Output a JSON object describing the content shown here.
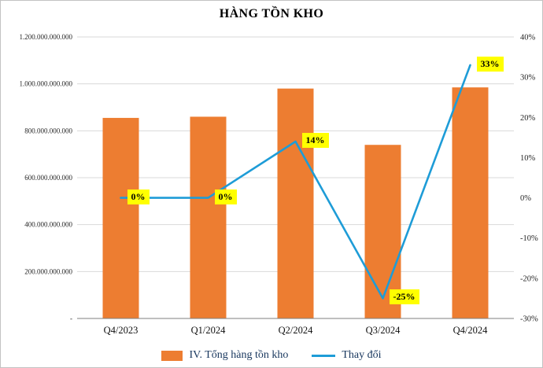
{
  "title": "HÀNG TỒN KHO",
  "legend": {
    "bar_label": "IV. Tổng hàng tồn kho",
    "line_label": "Thay đổi"
  },
  "colors": {
    "bar": "#ED7D31",
    "line": "#1E9CD7",
    "label_bg": "#FFFF00",
    "grid": "#D9D9D9",
    "axis_line": "#7F7F7F",
    "title_text": "#000000",
    "legend_text": "#17365D",
    "axis_text": "#262626",
    "x_label_text": "#111111"
  },
  "chart_data": {
    "type": "bar",
    "subtype": "bar+line combo, dual axis",
    "title": "HÀNG TỒN KHO",
    "categories": [
      "Q4/2023",
      "Q1/2024",
      "Q2/2024",
      "Q3/2024",
      "Q4/2024"
    ],
    "series": [
      {
        "name": "IV. Tổng hàng tồn kho",
        "type": "bar",
        "axis": "left",
        "values": [
          855000000000,
          860000000000,
          980000000000,
          740000000000,
          985000000000
        ]
      },
      {
        "name": "Thay đổi",
        "type": "line",
        "axis": "right",
        "values_percent": [
          0,
          0,
          14,
          -25,
          33
        ],
        "point_labels": [
          "0%",
          "0%",
          "14%",
          "-25%",
          "33%"
        ]
      }
    ],
    "left_axis": {
      "min": 0,
      "max": 1200000000000,
      "step": 200000000000,
      "tick_labels": [
        "-",
        "200.000.000.000",
        "400.000.000.000",
        "600.000.000.000",
        "800.000.000.000",
        "1.000.000.000.000",
        "1.200.000.000.000"
      ]
    },
    "right_axis": {
      "min": -30,
      "max": 40,
      "step": 10,
      "tick_labels": [
        "-30%",
        "-20%",
        "-10%",
        "0%",
        "10%",
        "20%",
        "30%",
        "40%"
      ]
    },
    "grid": "horizontal only",
    "legend_position": "bottom"
  }
}
